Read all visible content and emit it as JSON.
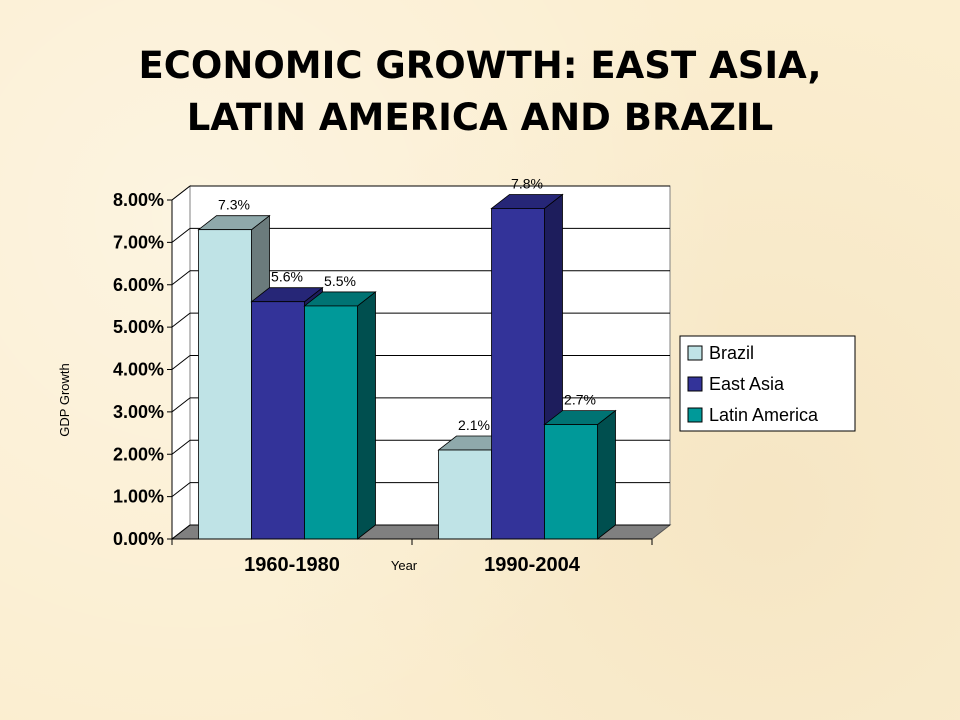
{
  "slide": {
    "title_line1": "ECONOMIC GROWTH: EAST ASIA,",
    "title_line2": "LATIN AMERICA AND BRAZIL"
  },
  "chart_data": {
    "type": "bar",
    "title": "",
    "xlabel": "Year",
    "ylabel": "GDP Growth",
    "categories": [
      "1960-1980",
      "1990-2004"
    ],
    "series": [
      {
        "name": "Brazil",
        "values": [
          7.3,
          2.1
        ],
        "labels": [
          "7.3%",
          "2.1%"
        ],
        "color": "#bfe3e6",
        "side": "#6b7b7c",
        "top": "#8fa9ab"
      },
      {
        "name": "East Asia",
        "values": [
          5.6,
          7.8
        ],
        "labels": [
          "5.6%",
          "7.8%"
        ],
        "color": "#333399",
        "side": "#1d1d5c",
        "top": "#262677"
      },
      {
        "name": "Latin America",
        "values": [
          5.5,
          2.7
        ],
        "labels": [
          "5.5%",
          "2.7%"
        ],
        "color": "#009999",
        "side": "#004f4f",
        "top": "#007373"
      }
    ],
    "ylim": [
      0,
      8
    ],
    "yticks": [
      "0.00%",
      "1.00%",
      "2.00%",
      "3.00%",
      "4.00%",
      "5.00%",
      "6.00%",
      "7.00%",
      "8.00%"
    ],
    "grid": true,
    "legend": "right",
    "style": {
      "plot_background": "#ffffff",
      "floor_color": "#808080",
      "gridline_color": "#000000"
    }
  }
}
